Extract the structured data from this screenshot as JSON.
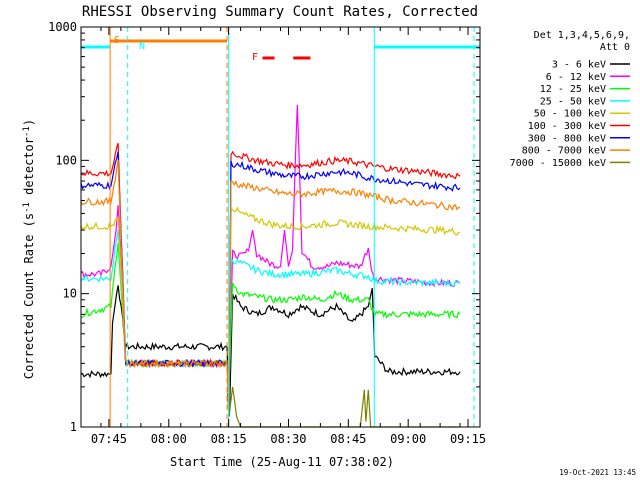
{
  "chart_data": {
    "type": "line",
    "title": "RHESSI Observing Summary Count Rates, Corrected",
    "xlabel": "Start Time (25-Aug-11 07:38:02)",
    "ylabel": "Corrected Count Rate (s⁻¹ detector⁻¹)",
    "ylabel_parts": [
      "Corrected Count Rate (s",
      "-1",
      " detector",
      "-1",
      ")"
    ],
    "yscale": "log",
    "ylim": [
      1,
      1000
    ],
    "xlim_minutes": [
      0,
      100
    ],
    "x_ticks": [
      {
        "t": 7,
        "label": "07:45"
      },
      {
        "t": 22,
        "label": "08:00"
      },
      {
        "t": 37,
        "label": "08:15"
      },
      {
        "t": 52,
        "label": "08:30"
      },
      {
        "t": 67,
        "label": "08:45"
      },
      {
        "t": 82,
        "label": "09:00"
      },
      {
        "t": 97,
        "label": "09:15"
      }
    ],
    "y_ticks": [
      {
        "v": 1,
        "label": "1"
      },
      {
        "v": 10,
        "label": "10"
      },
      {
        "v": 100,
        "label": "100"
      },
      {
        "v": 1000,
        "label": "1000"
      }
    ],
    "legend_header": [
      "Det 1,3,4,5,6,9,",
      "Att 0"
    ],
    "series": [
      {
        "name": "3 - 6 keV",
        "color": "#000000",
        "points": [
          [
            0,
            2.5
          ],
          [
            7.5,
            2.5
          ],
          [
            7.9,
            6
          ],
          [
            9.3,
            12
          ],
          [
            11.2,
            4
          ],
          [
            36.6,
            4
          ],
          [
            37.2,
            1.2
          ],
          [
            38,
            10
          ],
          [
            40,
            8
          ],
          [
            44,
            7
          ],
          [
            48,
            8
          ],
          [
            52,
            7
          ],
          [
            55,
            8
          ],
          [
            60,
            7
          ],
          [
            64,
            8
          ],
          [
            68,
            6
          ],
          [
            72,
            8
          ],
          [
            73,
            11
          ],
          [
            73.6,
            3.4
          ],
          [
            77,
            2.6
          ],
          [
            85,
            2.6
          ],
          [
            90,
            2.6
          ],
          [
            95,
            2.6
          ]
        ]
      },
      {
        "name": "6 - 12 keV",
        "color": "#ff00ff",
        "points": [
          [
            0,
            14
          ],
          [
            5,
            14
          ],
          [
            7.5,
            16
          ],
          [
            8.8,
            30
          ],
          [
            9.3,
            45
          ],
          [
            11.2,
            3
          ],
          [
            36.6,
            3
          ],
          [
            37.1,
            1.8
          ],
          [
            38,
            20
          ],
          [
            40,
            19
          ],
          [
            42,
            21
          ],
          [
            43,
            30
          ],
          [
            44,
            20
          ],
          [
            47,
            17
          ],
          [
            50,
            16
          ],
          [
            51,
            30
          ],
          [
            52,
            16
          ],
          [
            53,
            21
          ],
          [
            53.8,
            120
          ],
          [
            54.2,
            260
          ],
          [
            54.6,
            120
          ],
          [
            55.4,
            21
          ],
          [
            58,
            16
          ],
          [
            62,
            16
          ],
          [
            64,
            17
          ],
          [
            70,
            16
          ],
          [
            72,
            22
          ],
          [
            72.8,
            15
          ],
          [
            73.6,
            13
          ],
          [
            80,
            12.5
          ],
          [
            90,
            12
          ],
          [
            95,
            12
          ]
        ]
      },
      {
        "name": "12 - 25 keV",
        "color": "#00ff00",
        "points": [
          [
            0,
            7
          ],
          [
            7.5,
            8
          ],
          [
            9.3,
            25
          ],
          [
            11.2,
            3
          ],
          [
            36.6,
            3
          ],
          [
            37.1,
            2
          ],
          [
            38,
            12
          ],
          [
            40,
            10
          ],
          [
            44,
            9.5
          ],
          [
            48,
            9
          ],
          [
            52,
            9
          ],
          [
            56,
            9.5
          ],
          [
            60,
            9
          ],
          [
            64,
            10
          ],
          [
            68,
            9
          ],
          [
            72,
            9
          ],
          [
            73.6,
            7
          ],
          [
            80,
            7
          ],
          [
            90,
            7
          ],
          [
            95,
            7
          ]
        ]
      },
      {
        "name": "25 - 50 keV",
        "color": "#00ffff",
        "points": [
          [
            0,
            13
          ],
          [
            7.5,
            13
          ],
          [
            9.3,
            32
          ],
          [
            11.2,
            3
          ],
          [
            36.6,
            3
          ],
          [
            37.1,
            1.6
          ],
          [
            37.6,
            18
          ],
          [
            40,
            17
          ],
          [
            44,
            15
          ],
          [
            48,
            14
          ],
          [
            52,
            14
          ],
          [
            56,
            14
          ],
          [
            60,
            14.5
          ],
          [
            64,
            15
          ],
          [
            68,
            14
          ],
          [
            72,
            13.5
          ],
          [
            73.6,
            12.5
          ],
          [
            80,
            12.2
          ],
          [
            90,
            12
          ],
          [
            95,
            12
          ]
        ]
      },
      {
        "name": "50 - 100 keV",
        "color": "#d2c800",
        "points": [
          [
            0,
            32
          ],
          [
            7.5,
            32
          ],
          [
            9.3,
            36
          ],
          [
            11.2,
            3
          ],
          [
            36.6,
            3
          ],
          [
            37.1,
            1.5
          ],
          [
            37.6,
            45
          ],
          [
            40,
            40
          ],
          [
            44,
            36
          ],
          [
            48,
            33
          ],
          [
            52,
            32
          ],
          [
            56,
            32
          ],
          [
            60,
            33
          ],
          [
            64,
            34
          ],
          [
            68,
            33
          ],
          [
            72,
            32
          ],
          [
            80,
            31
          ],
          [
            90,
            30
          ],
          [
            95,
            29
          ]
        ]
      },
      {
        "name": "100 - 300 keV",
        "color": "#ff0000",
        "points": [
          [
            0,
            80
          ],
          [
            7.5,
            80
          ],
          [
            9.3,
            130
          ],
          [
            11.2,
            3
          ],
          [
            36.6,
            3
          ],
          [
            37.1,
            1.4
          ],
          [
            37.6,
            115
          ],
          [
            40,
            108
          ],
          [
            44,
            100
          ],
          [
            48,
            95
          ],
          [
            52,
            92
          ],
          [
            56,
            92
          ],
          [
            60,
            96
          ],
          [
            64,
            100
          ],
          [
            68,
            98
          ],
          [
            72,
            92
          ],
          [
            78,
            86
          ],
          [
            84,
            83
          ],
          [
            90,
            79
          ],
          [
            95,
            76
          ]
        ]
      },
      {
        "name": "300 - 800 keV",
        "color": "#0000ff",
        "points": [
          [
            0,
            65
          ],
          [
            7.5,
            65
          ],
          [
            9.3,
            115
          ],
          [
            11.2,
            3
          ],
          [
            36.6,
            3
          ],
          [
            37.1,
            1.4
          ],
          [
            37.6,
            95
          ],
          [
            40,
            92
          ],
          [
            44,
            85
          ],
          [
            48,
            80
          ],
          [
            52,
            76
          ],
          [
            56,
            76
          ],
          [
            60,
            79
          ],
          [
            64,
            82
          ],
          [
            68,
            80
          ],
          [
            72,
            74
          ],
          [
            78,
            70
          ],
          [
            84,
            66
          ],
          [
            90,
            64
          ],
          [
            95,
            62
          ]
        ]
      },
      {
        "name": "800 - 7000 keV",
        "color": "#ff7f00",
        "points": [
          [
            0,
            49
          ],
          [
            7.5,
            49
          ],
          [
            9.3,
            100
          ],
          [
            11.2,
            3
          ],
          [
            36.6,
            3
          ],
          [
            37.1,
            1.4
          ],
          [
            37.6,
            70
          ],
          [
            40,
            65
          ],
          [
            44,
            62
          ],
          [
            48,
            58
          ],
          [
            52,
            56
          ],
          [
            56,
            56
          ],
          [
            60,
            58
          ],
          [
            64,
            59
          ],
          [
            68,
            58
          ],
          [
            72,
            55
          ],
          [
            78,
            50
          ],
          [
            84,
            48
          ],
          [
            90,
            46
          ],
          [
            95,
            44
          ]
        ]
      },
      {
        "name": "7000 - 15000 keV",
        "color": "#7f7f00",
        "points": [
          [
            36.7,
            1.8
          ],
          [
            37.1,
            1.2
          ],
          [
            38,
            2
          ],
          [
            39,
            1.2
          ],
          [
            40,
            1.0
          ],
          [
            70,
            1.0
          ],
          [
            71,
            1.9
          ],
          [
            71.4,
            1.1
          ],
          [
            72,
            1.9
          ],
          [
            72.6,
            1.0
          ],
          [
            76,
            1.0
          ],
          [
            95,
            1.0
          ]
        ]
      }
    ],
    "annotations": [
      {
        "label": "S",
        "color": "#ff7f00"
      },
      {
        "label": "N",
        "color": "#00ffff"
      },
      {
        "label": "F",
        "color": "#ff0000"
      }
    ],
    "intervals": [
      {
        "name": "saa",
        "color": "#ff7f00",
        "start": 7.3,
        "end": 36.6
      },
      {
        "name": "night-1",
        "color": "#00ffff",
        "start": 0,
        "end": 7.3
      },
      {
        "name": "night-2",
        "color": "#00ffff",
        "start": 11.7,
        "end": 11.7
      },
      {
        "name": "night-3",
        "color": "#00ffff",
        "start": 73.5,
        "end": 100
      },
      {
        "name": "flare-1",
        "color": "#ff0000",
        "start": 45.5,
        "end": 48.5
      },
      {
        "name": "flare-2",
        "color": "#ff0000",
        "start": 53.2,
        "end": 57.5
      }
    ],
    "vlines": [
      {
        "t": 7.3,
        "color": "#ff7f00",
        "dash": false
      },
      {
        "t": 11.7,
        "color": "#00ffff",
        "dash": true
      },
      {
        "t": 36.6,
        "color": "#ff7f00",
        "dash": true
      },
      {
        "t": 37.0,
        "color": "#00ffff",
        "dash": false
      },
      {
        "t": 73.5,
        "color": "#00ffff",
        "dash": false
      },
      {
        "t": 98.5,
        "color": "#00ffff",
        "dash": true
      }
    ],
    "footer": "19-Oct-2021 13:45",
    "grid": false,
    "legend_position": "right"
  }
}
